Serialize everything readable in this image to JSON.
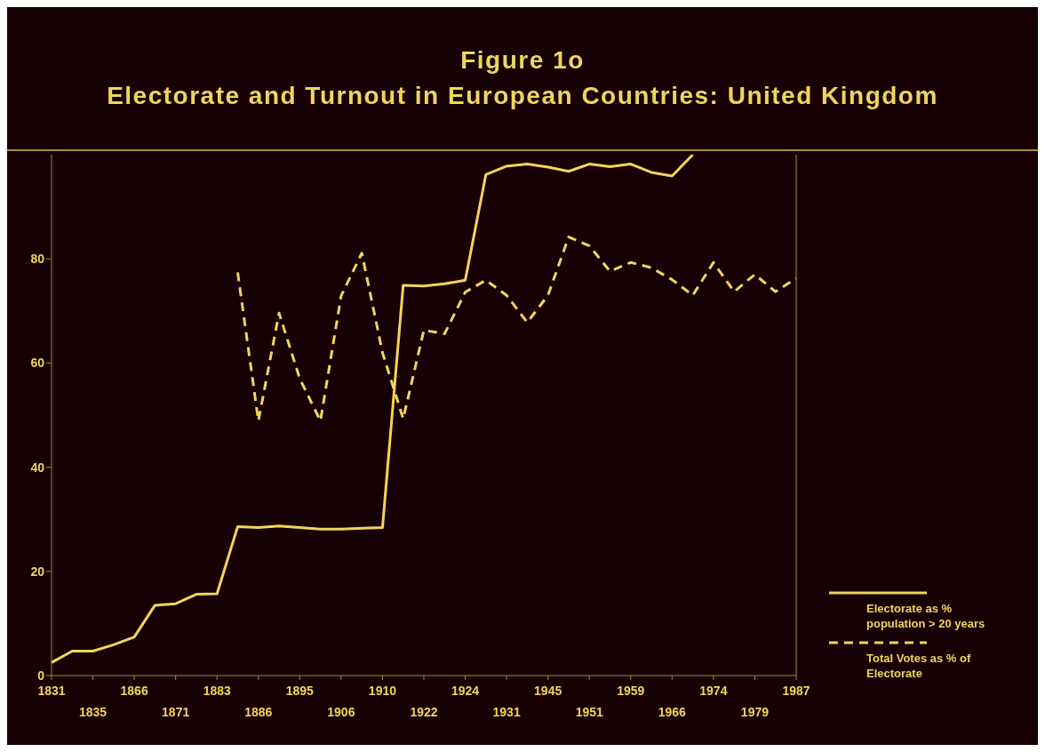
{
  "chart_data": {
    "type": "line",
    "title": "Figure 1o",
    "subtitle": "Electorate and Turnout in European Countries: United Kingdom",
    "categories": [
      "1831",
      null,
      "1835",
      null,
      "1866",
      null,
      "1871",
      null,
      "1883",
      null,
      "1886",
      null,
      "1895",
      null,
      "1906",
      null,
      "1910",
      null,
      "1922",
      null,
      "1924",
      null,
      "1931",
      null,
      "1945",
      null,
      "1951",
      null,
      "1959",
      null,
      "1966",
      null,
      "1974",
      null,
      "1979",
      null,
      "1987"
    ],
    "series": [
      {
        "name": "Electorate as % population > 20 years",
        "color": "#f2d45c",
        "line_style": "solid",
        "values": [
          2.5,
          4.7,
          4.7,
          5.9,
          7.4,
          13.5,
          13.8,
          15.6,
          15.7,
          28.6,
          28.4,
          28.7,
          28.4,
          28.1,
          28.1,
          28.3,
          28.4,
          74.9,
          74.8,
          75.2,
          75.9,
          96.2,
          97.8,
          98.2,
          97.6,
          96.8,
          98.2,
          97.7,
          98.2,
          96.6,
          95.9,
          100,
          null,
          null,
          null,
          null,
          null
        ]
      },
      {
        "name": "Total Votes as % of Electorate",
        "color": "#f2d45c",
        "line_style": "dashed",
        "values": [
          null,
          null,
          null,
          null,
          null,
          null,
          null,
          null,
          null,
          77.4,
          48.9,
          69.6,
          57,
          48.9,
          72.9,
          81.1,
          62,
          49.3,
          66.3,
          65.6,
          73.6,
          75.9,
          73.0,
          67.8,
          73.0,
          84.2,
          82.5,
          77.6,
          79.3,
          78.3,
          76.0,
          73.0,
          79.3,
          73.7,
          77.0,
          73.7,
          76.3
        ]
      }
    ],
    "ylim": [
      0,
      100
    ],
    "yticks": [
      0,
      20,
      40,
      60,
      80
    ],
    "legend": "right",
    "marker": "none"
  }
}
